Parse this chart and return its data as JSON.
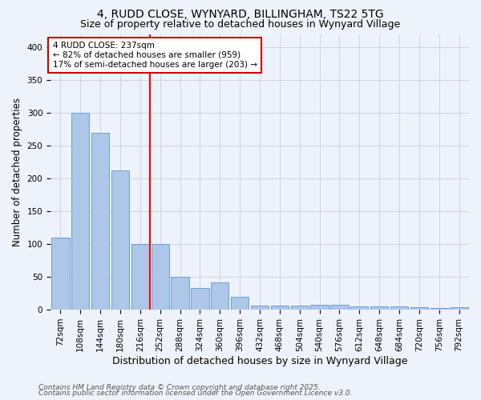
{
  "title1": "4, RUDD CLOSE, WYNYARD, BILLINGHAM, TS22 5TG",
  "title2": "Size of property relative to detached houses in Wynyard Village",
  "xlabel": "Distribution of detached houses by size in Wynyard Village",
  "ylabel": "Number of detached properties",
  "categories": [
    "72sqm",
    "108sqm",
    "144sqm",
    "180sqm",
    "216sqm",
    "252sqm",
    "288sqm",
    "324sqm",
    "360sqm",
    "396sqm",
    "432sqm",
    "468sqm",
    "504sqm",
    "540sqm",
    "576sqm",
    "612sqm",
    "648sqm",
    "684sqm",
    "720sqm",
    "756sqm",
    "792sqm"
  ],
  "values": [
    110,
    300,
    270,
    212,
    100,
    100,
    50,
    33,
    42,
    20,
    6,
    6,
    6,
    8,
    8,
    5,
    5,
    5,
    4,
    3,
    4
  ],
  "bar_color": "#aec6e8",
  "bar_edge_color": "#6a9fd8",
  "red_line_x": 4.5,
  "annotation_line1": "4 RUDD CLOSE: 237sqm",
  "annotation_line2": "← 82% of detached houses are smaller (959)",
  "annotation_line3": "17% of semi-detached houses are larger (203) →",
  "annotation_box_color": "#ffffff",
  "annotation_box_edge": "#cc0000",
  "footnote1": "Contains HM Land Registry data © Crown copyright and database right 2025.",
  "footnote2": "Contains public sector information licensed under the Open Government Licence v3.0.",
  "background_color": "#eef2fb",
  "ylim": [
    0,
    420
  ],
  "yticks": [
    0,
    50,
    100,
    150,
    200,
    250,
    300,
    350,
    400
  ],
  "title1_fontsize": 10,
  "title2_fontsize": 9,
  "xlabel_fontsize": 9,
  "ylabel_fontsize": 8.5,
  "tick_fontsize": 7.5,
  "ann_fontsize": 7.5,
  "footnote_fontsize": 6.5
}
